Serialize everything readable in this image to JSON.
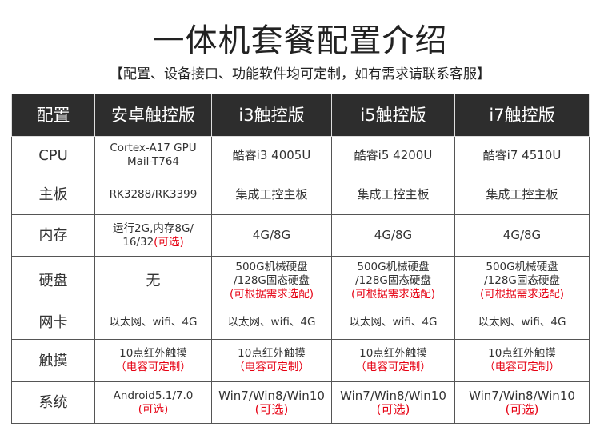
{
  "title": "一体机套餐配置介绍",
  "subtitle": "【配置、设备接口、功能软件均可定制，如有需求请联系客服】",
  "colors": {
    "header_bg": "#2d2d2d",
    "accent_red": "#e60012"
  },
  "table": {
    "headers": [
      "配置",
      "安卓触控版",
      "i3触控版",
      "i5触控版",
      "i7触控版"
    ],
    "rows": [
      {
        "label": "CPU",
        "cells": [
          [
            [
              {
                "t": "Cortex-A17 GPU"
              }
            ],
            [
              {
                "t": "Mail-T764"
              }
            ]
          ],
          [
            [
              {
                "t": "酷睿i3 4005U"
              }
            ]
          ],
          [
            [
              {
                "t": "酷睿i5 4200U"
              }
            ]
          ],
          [
            [
              {
                "t": "酷睿i7 4510U"
              }
            ]
          ]
        ]
      },
      {
        "label": "主板",
        "cells": [
          [
            [
              {
                "t": "RK3288/RK3399"
              }
            ]
          ],
          [
            [
              {
                "t": "集成工控主板"
              }
            ]
          ],
          [
            [
              {
                "t": "集成工控主板"
              }
            ]
          ],
          [
            [
              {
                "t": "集成工控主板"
              }
            ]
          ]
        ]
      },
      {
        "label": "内存",
        "cells": [
          [
            [
              {
                "t": "运行2G,内存8G/"
              }
            ],
            [
              {
                "t": "16/32"
              },
              {
                "t": "(可选)",
                "red": true
              }
            ]
          ],
          [
            [
              {
                "t": "4G/8G"
              }
            ]
          ],
          [
            [
              {
                "t": "4G/8G"
              }
            ]
          ],
          [
            [
              {
                "t": "4G/8G"
              }
            ]
          ]
        ]
      },
      {
        "label": "硬盘",
        "cells": [
          [
            [
              {
                "t": "无"
              }
            ]
          ],
          [
            [
              {
                "t": "500G机械硬盘"
              }
            ],
            [
              {
                "t": "/128G固态硬盘"
              }
            ],
            [
              {
                "t": "(可根据需求选配)",
                "red": true
              }
            ]
          ],
          [
            [
              {
                "t": "500G机械硬盘"
              }
            ],
            [
              {
                "t": "/128G固态硬盘"
              }
            ],
            [
              {
                "t": "(可根据需求选配)",
                "red": true
              }
            ]
          ],
          [
            [
              {
                "t": "500G机械硬盘"
              }
            ],
            [
              {
                "t": "/128G固态硬盘"
              }
            ],
            [
              {
                "t": "(可根据需求选配)",
                "red": true
              }
            ]
          ]
        ]
      },
      {
        "label": "网卡",
        "cells": [
          [
            [
              {
                "t": "以太网、wifi、4G"
              }
            ]
          ],
          [
            [
              {
                "t": "以太网、wifi、4G"
              }
            ]
          ],
          [
            [
              {
                "t": "以太网、wifi、4G"
              }
            ]
          ],
          [
            [
              {
                "t": "以太网、wifi、4G"
              }
            ]
          ]
        ]
      },
      {
        "label": "触摸",
        "cells": [
          [
            [
              {
                "t": "10点红外触摸"
              }
            ],
            [
              {
                "t": "（电容可定制）",
                "red": true
              }
            ]
          ],
          [
            [
              {
                "t": "10点红外触摸"
              }
            ],
            [
              {
                "t": "（电容可定制）",
                "red": true
              }
            ]
          ],
          [
            [
              {
                "t": "10点红外触摸"
              }
            ],
            [
              {
                "t": "（电容可定制）",
                "red": true
              }
            ]
          ],
          [
            [
              {
                "t": "10点红外触摸"
              }
            ],
            [
              {
                "t": "（电容可定制）",
                "red": true
              }
            ]
          ]
        ]
      },
      {
        "label": "系统",
        "cells": [
          [
            [
              {
                "t": "Android5.1/7.0"
              }
            ],
            [
              {
                "t": "(可选)",
                "red": true
              }
            ]
          ],
          [
            [
              {
                "t": "Win7/Win8/Win10"
              }
            ],
            [
              {
                "t": "(可选)",
                "red": true
              }
            ]
          ],
          [
            [
              {
                "t": "Win7/Win8/Win10"
              }
            ],
            [
              {
                "t": "(可选)",
                "red": true
              }
            ]
          ],
          [
            [
              {
                "t": "Win7/Win8/Win10"
              }
            ],
            [
              {
                "t": "(可选)",
                "red": true
              }
            ]
          ]
        ]
      }
    ]
  }
}
